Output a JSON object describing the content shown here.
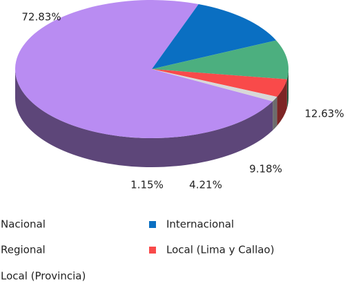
{
  "chart_data": {
    "type": "pie",
    "categories": [
      "Nacional",
      "Internacional",
      "Regional",
      "Local (Lima y Callao)",
      "Local (Provincia)"
    ],
    "values": [
      72.83,
      12.63,
      9.18,
      4.21,
      1.15
    ],
    "value_labels": [
      "72.83%",
      "12.63%",
      "9.18%",
      "4.21%",
      "1.15%"
    ],
    "colors": [
      "#b98cf2",
      "#0a6fc2",
      "#4caf7f",
      "#f94a4a",
      "#d8d8d8"
    ],
    "legend": "bottom"
  }
}
